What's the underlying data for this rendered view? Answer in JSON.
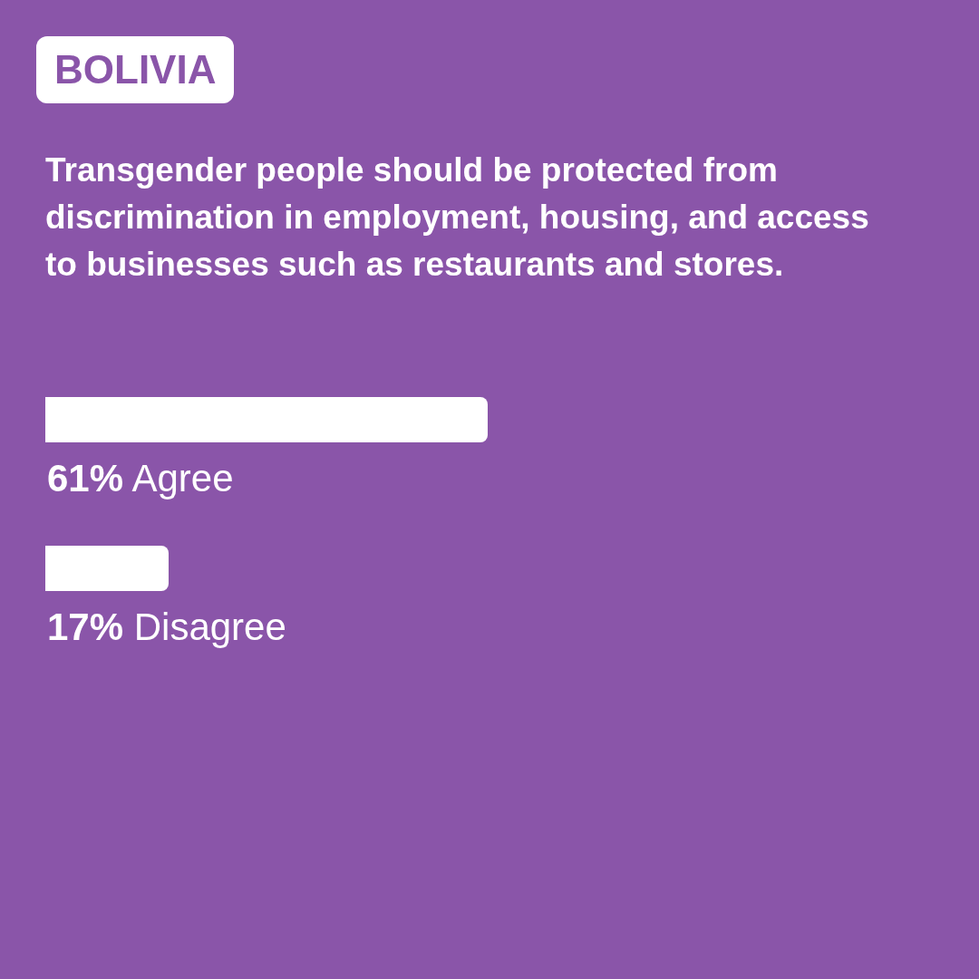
{
  "chart_data": {
    "type": "bar",
    "orientation": "horizontal",
    "title": "BOLIVIA",
    "subtitle": "Transgender people should be protected from discrimination in employment, housing, and access to businesses such as restaurants and stores.",
    "categories": [
      "Agree",
      "Disagree"
    ],
    "values": [
      61,
      17
    ],
    "value_labels": [
      "61%",
      "17%"
    ],
    "color": "#ffffff",
    "tick_labels": false,
    "grid": false,
    "legend": false
  }
}
